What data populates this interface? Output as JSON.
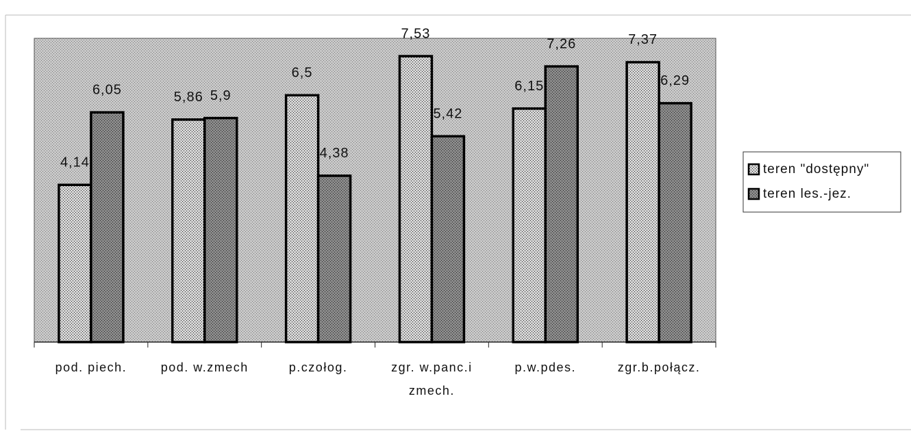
{
  "chart_data": {
    "type": "bar",
    "categories": [
      "pod. piech.",
      "pod. w.zmech",
      "p.czołog.",
      "zgr. w.panc.i\nzmech.",
      "p.w.pdes.",
      "zgr.b.połącz."
    ],
    "series": [
      {
        "name": "teren \"dostępny\"",
        "color": "#d4d4d4",
        "values": [
          4.14,
          5.86,
          6.5,
          7.53,
          6.15,
          7.37
        ],
        "value_labels": [
          "4,14",
          "5,86",
          "6,5",
          "7,53",
          "6,15",
          "7,37"
        ]
      },
      {
        "name": "teren les.-jez.",
        "color": "#8a8a8a",
        "values": [
          6.05,
          5.9,
          4.38,
          5.42,
          7.26,
          6.29
        ],
        "value_labels": [
          "6,05",
          "5,9",
          "4,38",
          "5,42",
          "7,26",
          "6,29"
        ]
      }
    ],
    "ylim": [
      0,
      8
    ],
    "legend": "right",
    "background": "#c8c8c8"
  }
}
